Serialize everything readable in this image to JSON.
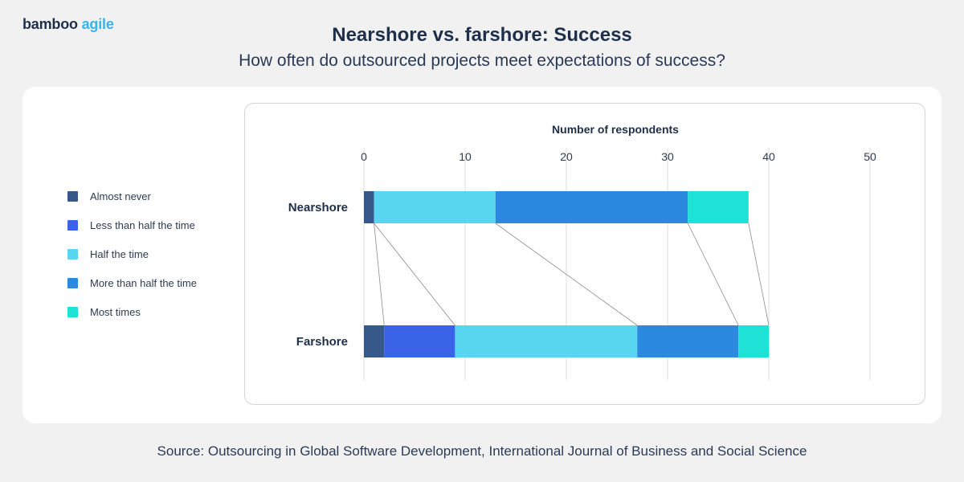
{
  "brand": {
    "part1": "bamboo",
    "part2": "agile"
  },
  "header": {
    "title": "Nearshore vs. farshore: Success",
    "subtitle": "How often do outsourced projects meet expectations of success?"
  },
  "source": "Source: Outsourcing in Global Software Development, International Journal of Business and Social Science",
  "colors": {
    "Almost never": "#37598a",
    "Less than half the time": "#3a63e8",
    "Half the time": "#58d5ef",
    "More than half the time": "#2b8ae0",
    "Most times": "#1ee2d6"
  },
  "legend": [
    {
      "label": "Almost never",
      "color": "#37598a"
    },
    {
      "label": "Less than half the time",
      "color": "#3a63e8"
    },
    {
      "label": "Half the time",
      "color": "#58d5ef"
    },
    {
      "label": "More than half the time",
      "color": "#2b8ae0"
    },
    {
      "label": "Most times",
      "color": "#1ee2d6"
    }
  ],
  "chart_data": {
    "type": "bar",
    "orientation": "horizontal",
    "stacked": true,
    "xlabel": "Number of respondents",
    "xlim": [
      0,
      50
    ],
    "xticks": [
      0,
      10,
      20,
      30,
      40,
      50
    ],
    "grid": true,
    "legend_position": "left",
    "connector_lines": true,
    "categories": [
      "Nearshore",
      "Farshore"
    ],
    "series": [
      {
        "name": "Almost never",
        "values": [
          1,
          2
        ]
      },
      {
        "name": "Less than half the time",
        "values": [
          0,
          7
        ]
      },
      {
        "name": "Half the time",
        "values": [
          12,
          18
        ]
      },
      {
        "name": "More than half the time",
        "values": [
          19,
          10
        ]
      },
      {
        "name": "Most times",
        "values": [
          6,
          3
        ]
      }
    ]
  }
}
